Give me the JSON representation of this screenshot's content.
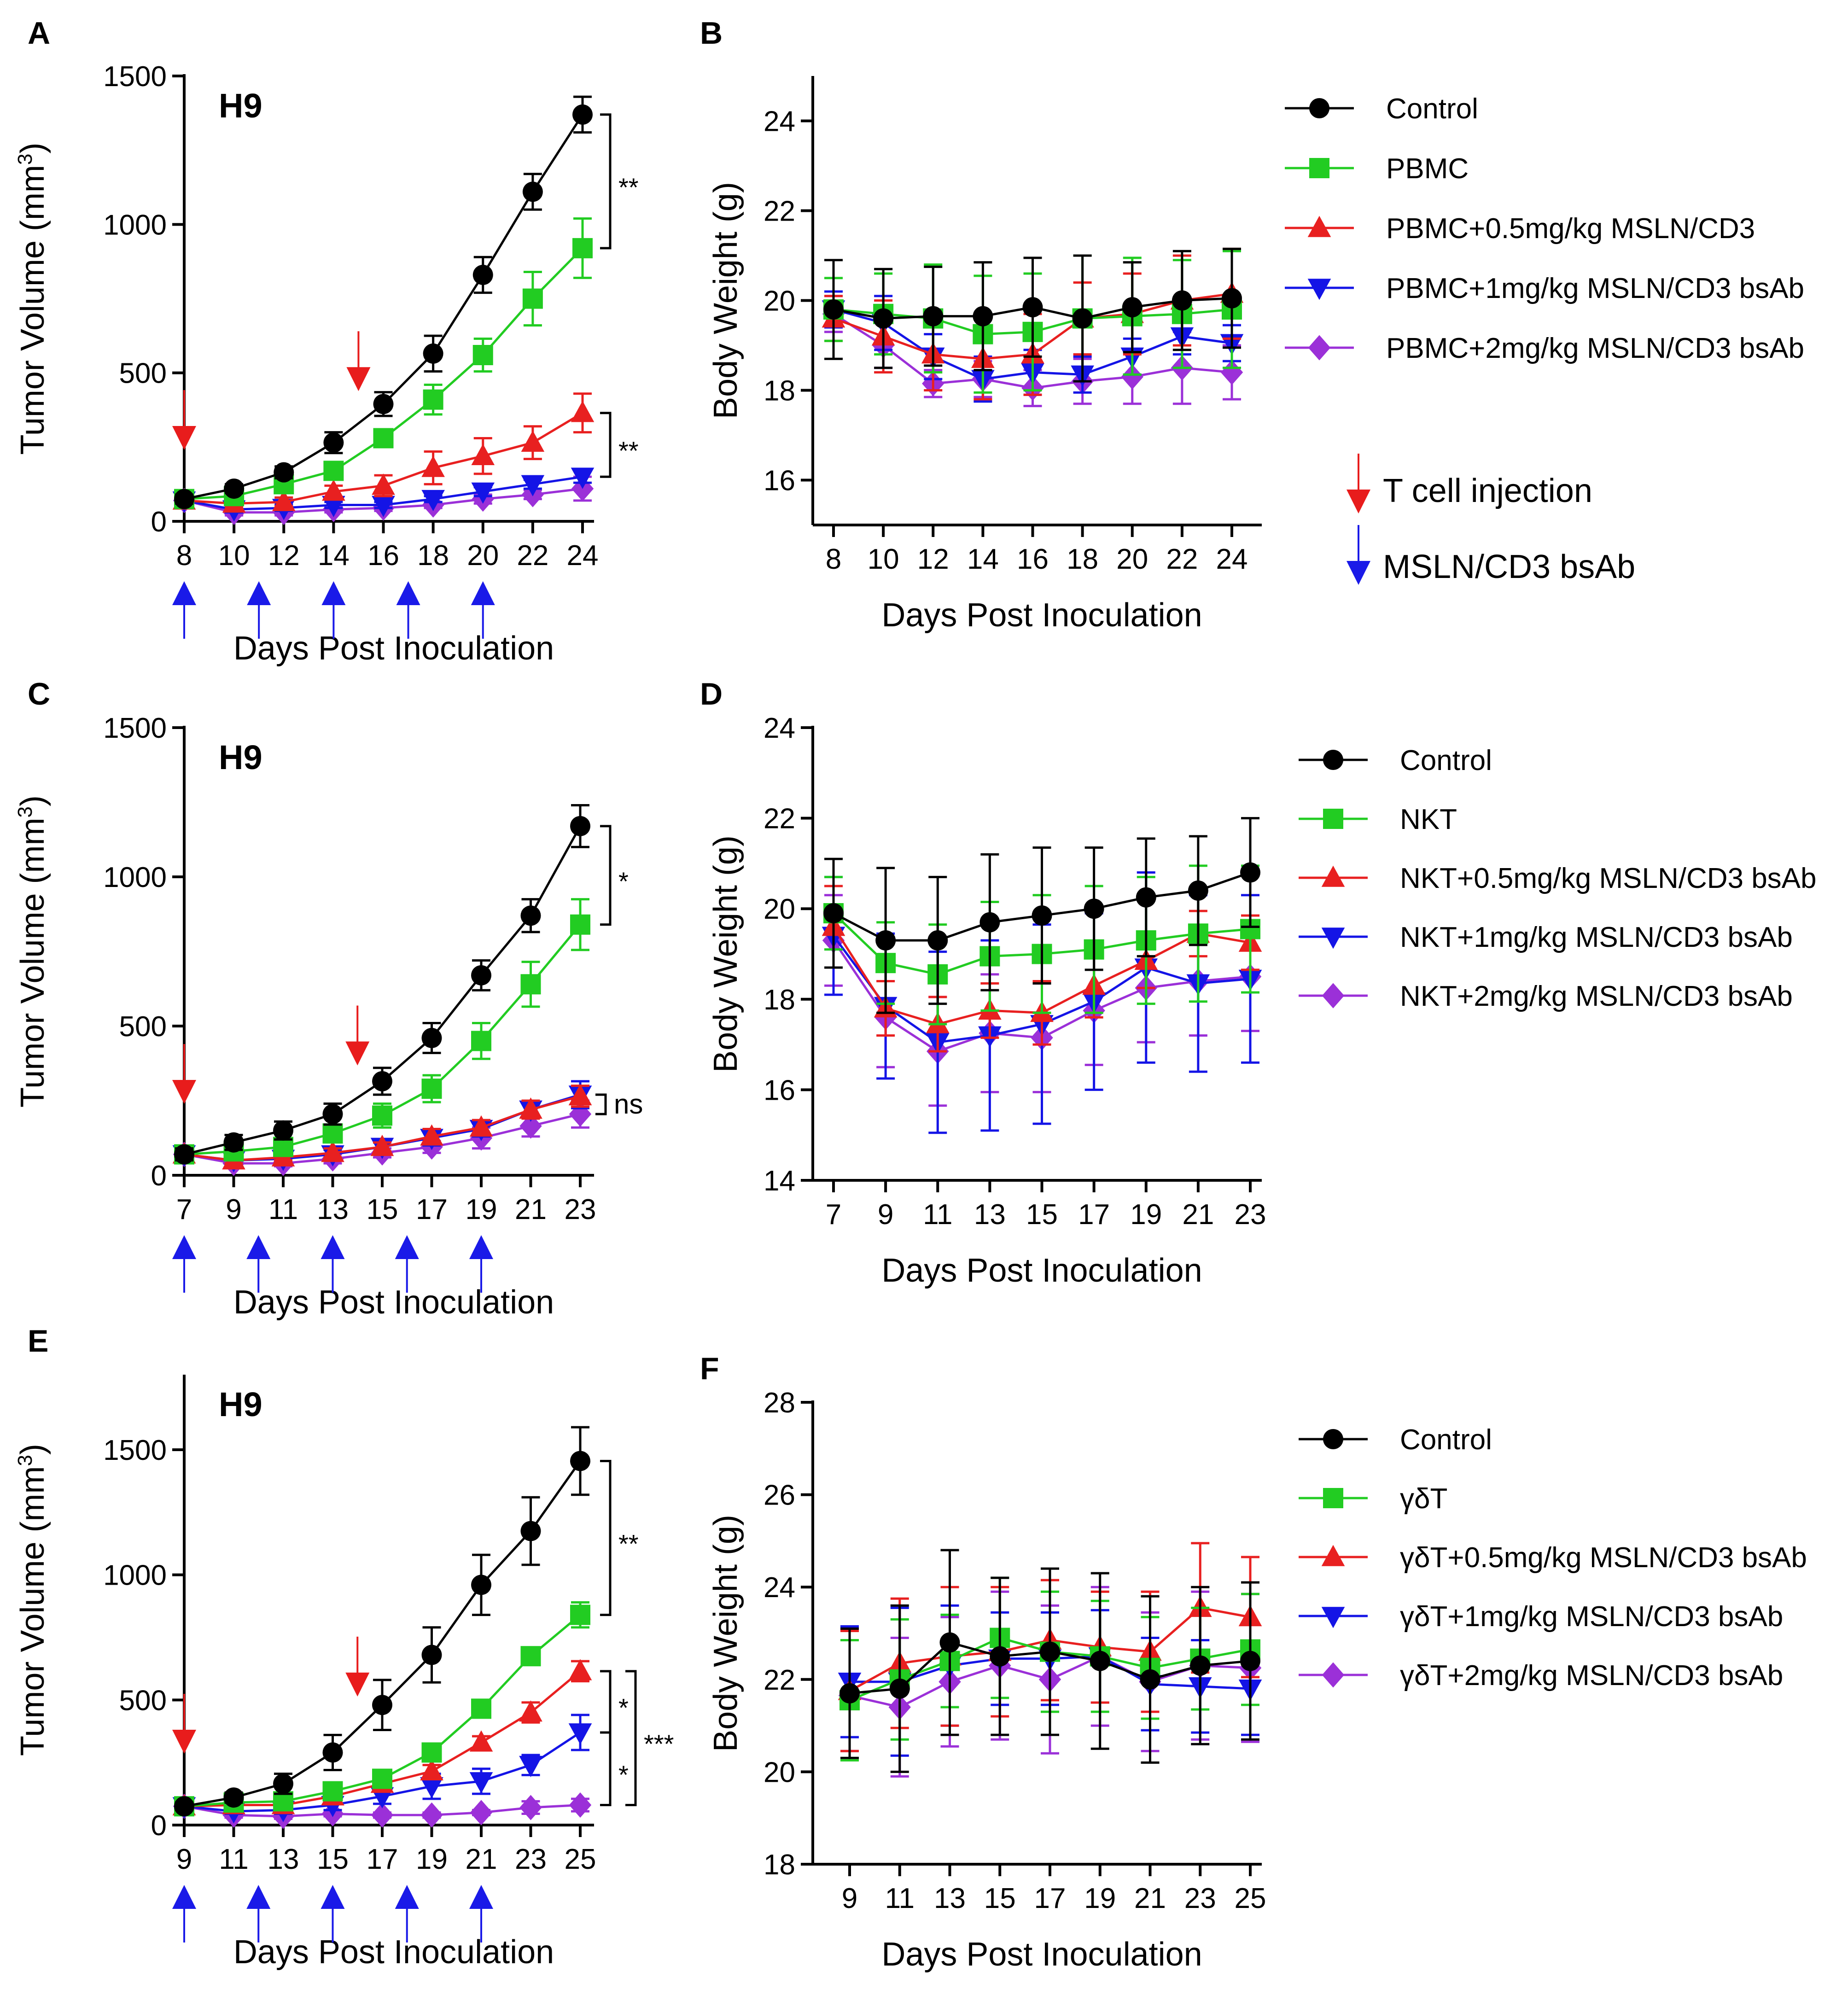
{
  "colors": {
    "Control": "#000000",
    "green": "#22cc22",
    "red": "#e82020",
    "blue": "#1414e6",
    "purple": "#9b30d8",
    "arrow_red": "#e81c1c",
    "arrow_blue": "#1a1ae8"
  },
  "legend_note": {
    "t_cell": "T cell injection",
    "bsab": "MSLN/CD3 bsAb"
  },
  "chart_data": [
    {
      "id": "A",
      "panel_label": "A",
      "type": "line",
      "title": "H9",
      "xlabel": "Days Post Inoculation",
      "ylabel": "Tumor Volume (mm3)",
      "x": [
        8,
        10,
        12,
        14,
        16,
        18,
        20,
        22,
        24
      ],
      "ylim": [
        0,
        1500
      ],
      "yticks": [
        0,
        500,
        1000,
        1500
      ],
      "xticks": [
        8,
        10,
        12,
        14,
        16,
        18,
        20,
        22,
        24
      ],
      "t_cell_days": [
        8,
        15
      ],
      "bsab_days": [
        8,
        11,
        14,
        17,
        20
      ],
      "series": [
        {
          "name": "Control",
          "color": "#000000",
          "marker": "circle",
          "values": [
            75,
            110,
            165,
            265,
            395,
            565,
            830,
            1110,
            1370
          ],
          "err": [
            15,
            15,
            20,
            35,
            40,
            60,
            60,
            60,
            60
          ]
        },
        {
          "name": "PBMC",
          "color": "#22cc22",
          "marker": "square",
          "values": [
            75,
            85,
            125,
            170,
            280,
            410,
            560,
            750,
            920
          ],
          "err": [
            15,
            15,
            20,
            25,
            25,
            50,
            55,
            90,
            100
          ]
        },
        {
          "name": "PBMC+0.5mg/kg MSLN/CD3",
          "color": "#e82020",
          "marker": "triangle-up",
          "values": [
            70,
            60,
            65,
            100,
            120,
            180,
            220,
            265,
            365
          ],
          "err": [
            10,
            10,
            15,
            20,
            35,
            55,
            60,
            55,
            65
          ]
        },
        {
          "name": "PBMC+1mg/kg MSLN/CD3 bsAb",
          "color": "#1414e6",
          "marker": "triangle-down",
          "values": [
            70,
            40,
            45,
            55,
            55,
            75,
            100,
            125,
            150
          ],
          "err": [
            10,
            10,
            10,
            10,
            10,
            10,
            15,
            15,
            20
          ]
        },
        {
          "name": "PBMC+2mg/kg MSLN/CD3 bsAb",
          "color": "#9b30d8",
          "marker": "diamond",
          "values": [
            70,
            30,
            30,
            40,
            45,
            55,
            75,
            90,
            110
          ],
          "err": [
            10,
            10,
            10,
            10,
            10,
            10,
            15,
            15,
            40
          ]
        }
      ],
      "annotations": [
        {
          "text": "**",
          "from": 1370,
          "to": 920
        },
        {
          "text": "**",
          "from": 365,
          "to": 150
        }
      ]
    },
    {
      "id": "B",
      "panel_label": "B",
      "type": "line",
      "xlabel": "Days Post Inoculation",
      "ylabel": "Body Weight (g)",
      "x": [
        8,
        10,
        12,
        14,
        16,
        18,
        20,
        22,
        24
      ],
      "ylim": [
        15,
        25
      ],
      "yticks": [
        16,
        18,
        20,
        22,
        24
      ],
      "xticks": [
        8,
        10,
        12,
        14,
        16,
        18,
        20,
        22,
        24
      ],
      "series": [
        {
          "name": "Control",
          "color": "#000000",
          "marker": "circle",
          "values": [
            19.8,
            19.6,
            19.65,
            19.65,
            19.85,
            19.6,
            19.85,
            20.0,
            20.05
          ],
          "err": [
            1.1,
            1.1,
            1.1,
            1.2,
            1.1,
            1.4,
            1.0,
            1.1,
            1.1
          ]
        },
        {
          "name": "PBMC",
          "color": "#22cc22",
          "marker": "square",
          "values": [
            19.8,
            19.7,
            19.6,
            19.25,
            19.3,
            19.6,
            19.65,
            19.7,
            19.8
          ],
          "err": [
            0.7,
            0.9,
            1.2,
            1.3,
            1.3,
            1.4,
            1.3,
            1.2,
            1.3
          ]
        },
        {
          "name": "PBMC+0.5mg/kg MSLN/CD3",
          "color": "#e82020",
          "marker": "triangle-up",
          "values": [
            19.6,
            19.2,
            18.8,
            18.7,
            18.8,
            19.6,
            19.7,
            20.0,
            20.15
          ],
          "err": [
            0.5,
            0.8,
            0.8,
            0.9,
            0.9,
            0.8,
            0.9,
            1.0,
            1.0
          ]
        },
        {
          "name": "PBMC+1mg/kg MSLN/CD3 bsAb",
          "color": "#1414e6",
          "marker": "triangle-down",
          "values": [
            19.8,
            19.5,
            18.75,
            18.25,
            18.4,
            18.35,
            18.75,
            19.2,
            19.05
          ],
          "err": [
            0.4,
            0.6,
            0.5,
            0.5,
            0.5,
            0.4,
            0.4,
            0.4,
            0.4
          ]
        },
        {
          "name": "PBMC+2mg/kg MSLN/CD3 bsAb",
          "color": "#9b30d8",
          "marker": "diamond",
          "values": [
            19.7,
            19.0,
            18.15,
            18.25,
            18.05,
            18.2,
            18.3,
            18.5,
            18.4
          ],
          "err": [
            0.4,
            0.5,
            0.3,
            0.4,
            0.4,
            0.5,
            0.6,
            0.8,
            0.6
          ]
        }
      ]
    },
    {
      "id": "C",
      "panel_label": "C",
      "type": "line",
      "title": "H9",
      "xlabel": "Days Post Inoculation",
      "ylabel": "Tumor Volume (mm3)",
      "x": [
        7,
        9,
        11,
        13,
        15,
        17,
        19,
        21,
        23
      ],
      "ylim": [
        0,
        1500
      ],
      "yticks": [
        0,
        500,
        1000,
        1500
      ],
      "xticks": [
        7,
        9,
        11,
        13,
        15,
        17,
        19,
        21,
        23
      ],
      "t_cell_days": [
        7,
        14
      ],
      "bsab_days": [
        7,
        10,
        13,
        16,
        19
      ],
      "series": [
        {
          "name": "Control",
          "color": "#000000",
          "marker": "circle",
          "values": [
            70,
            110,
            150,
            205,
            315,
            460,
            670,
            870,
            1170
          ],
          "err": [
            20,
            25,
            30,
            35,
            45,
            50,
            50,
            55,
            70
          ]
        },
        {
          "name": "NKT",
          "color": "#22cc22",
          "marker": "square",
          "values": [
            70,
            80,
            95,
            140,
            200,
            290,
            450,
            640,
            840
          ],
          "err": [
            15,
            15,
            20,
            25,
            40,
            45,
            60,
            75,
            85
          ]
        },
        {
          "name": "NKT+0.5mg/kg MSLN/CD3 bsAb",
          "color": "#e82020",
          "marker": "triangle-up",
          "values": [
            70,
            50,
            60,
            75,
            95,
            130,
            160,
            220,
            265
          ],
          "err": [
            10,
            10,
            10,
            15,
            15,
            25,
            25,
            30,
            35
          ]
        },
        {
          "name": "NKT+1mg/kg MSLN/CD3 bsAb",
          "color": "#1414e6",
          "marker": "triangle-down",
          "values": [
            70,
            50,
            55,
            70,
            95,
            125,
            155,
            220,
            270
          ],
          "err": [
            10,
            10,
            10,
            15,
            15,
            25,
            25,
            30,
            45
          ]
        },
        {
          "name": "NKT+2mg/kg MSLN/CD3 bsAb",
          "color": "#9b30d8",
          "marker": "diamond",
          "values": [
            70,
            40,
            40,
            55,
            75,
            95,
            125,
            165,
            205
          ],
          "err": [
            10,
            10,
            10,
            15,
            15,
            20,
            35,
            35,
            45
          ]
        }
      ],
      "annotations": [
        {
          "text": "*",
          "from": 1170,
          "to": 840
        },
        {
          "text": "ns",
          "from": 270,
          "to": 205
        }
      ]
    },
    {
      "id": "D",
      "panel_label": "D",
      "type": "line",
      "xlabel": "Days Post Inoculation",
      "ylabel": "Body Weight (g)",
      "x": [
        7,
        9,
        11,
        13,
        15,
        17,
        19,
        21,
        23
      ],
      "ylim": [
        14,
        24
      ],
      "yticks": [
        14,
        16,
        18,
        20,
        22,
        24
      ],
      "xticks": [
        7,
        9,
        11,
        13,
        15,
        17,
        19,
        21,
        23
      ],
      "series": [
        {
          "name": "Control",
          "color": "#000000",
          "marker": "circle",
          "values": [
            19.9,
            19.3,
            19.3,
            19.7,
            19.85,
            20.0,
            20.25,
            20.4,
            20.8
          ],
          "err": [
            1.2,
            1.6,
            1.4,
            1.5,
            1.5,
            1.35,
            1.3,
            1.2,
            1.2
          ]
        },
        {
          "name": "NKT",
          "color": "#22cc22",
          "marker": "square",
          "values": [
            19.9,
            18.8,
            18.55,
            18.95,
            19.0,
            19.1,
            19.3,
            19.45,
            19.55
          ],
          "err": [
            0.8,
            0.9,
            1.1,
            1.2,
            1.3,
            1.4,
            1.4,
            1.5,
            1.4
          ]
        },
        {
          "name": "NKT+0.5mg/kg MSLN/CD3 bsAb",
          "color": "#e82020",
          "marker": "triangle-up",
          "values": [
            19.6,
            17.8,
            17.45,
            17.75,
            17.7,
            18.3,
            18.85,
            19.45,
            19.25
          ],
          "err": [
            0.9,
            0.6,
            0.6,
            0.6,
            0.7,
            0.7,
            0.6,
            0.5,
            0.6
          ]
        },
        {
          "name": "NKT+1mg/kg MSLN/CD3 bsAb",
          "color": "#1414e6",
          "marker": "triangle-down",
          "values": [
            19.4,
            17.85,
            17.05,
            17.2,
            17.45,
            17.95,
            18.7,
            18.35,
            18.45
          ],
          "err": [
            1.3,
            1.6,
            2.0,
            2.1,
            2.2,
            1.95,
            2.1,
            1.95,
            1.85
          ]
        },
        {
          "name": "NKT+2mg/kg MSLN/CD3 bsAb",
          "color": "#9b30d8",
          "marker": "diamond",
          "values": [
            19.3,
            17.6,
            16.85,
            17.25,
            17.15,
            17.75,
            18.25,
            18.4,
            18.5
          ],
          "err": [
            1.0,
            1.1,
            1.2,
            1.3,
            1.2,
            1.2,
            1.2,
            1.2,
            1.2
          ]
        }
      ]
    },
    {
      "id": "E",
      "panel_label": "E",
      "type": "line",
      "title": "H9",
      "xlabel": "Days Post Inoculation",
      "ylabel": "Tumor Volume (mm3)",
      "x": [
        9,
        11,
        13,
        15,
        17,
        19,
        21,
        23,
        25
      ],
      "ylim": [
        0,
        1800
      ],
      "yticks": [
        0,
        500,
        1000,
        1500
      ],
      "xticks": [
        9,
        11,
        13,
        15,
        17,
        19,
        21,
        23,
        25
      ],
      "t_cell_days": [
        9,
        16
      ],
      "bsab_days": [
        9,
        12,
        15,
        18,
        21
      ],
      "series": [
        {
          "name": "Control",
          "color": "#000000",
          "marker": "circle",
          "values": [
            75,
            110,
            165,
            290,
            480,
            680,
            960,
            1175,
            1455
          ],
          "err": [
            15,
            20,
            40,
            70,
            100,
            110,
            120,
            135,
            135
          ]
        },
        {
          "name": "γδT",
          "color": "#22cc22",
          "marker": "square",
          "values": [
            75,
            90,
            95,
            135,
            185,
            290,
            465,
            675,
            840
          ],
          "err": [
            15,
            15,
            15,
            20,
            20,
            25,
            25,
            30,
            50
          ]
        },
        {
          "name": "γδT+0.5mg/kg MSLN/CD3 bsAb",
          "color": "#e82020",
          "marker": "triangle-up",
          "values": [
            75,
            80,
            80,
            115,
            165,
            215,
            330,
            450,
            615
          ],
          "err": [
            15,
            15,
            15,
            20,
            20,
            25,
            25,
            40,
            40
          ]
        },
        {
          "name": "γδT+1mg/kg MSLN/CD3 bsAb",
          "color": "#1414e6",
          "marker": "triangle-down",
          "values": [
            75,
            55,
            60,
            80,
            115,
            155,
            175,
            240,
            370
          ],
          "err": [
            15,
            10,
            15,
            20,
            30,
            50,
            50,
            40,
            70
          ]
        },
        {
          "name": "γδT+2mg/kg MSLN/CD3 bsAb",
          "color": "#9b30d8",
          "marker": "diamond",
          "values": [
            75,
            40,
            35,
            45,
            40,
            40,
            50,
            70,
            80
          ],
          "err": [
            10,
            10,
            10,
            10,
            10,
            10,
            10,
            25,
            25
          ]
        }
      ],
      "annotations": [
        {
          "text": "**",
          "from": 1455,
          "to": 840
        },
        {
          "text": "*",
          "from": 615,
          "to": 370
        },
        {
          "text": "*",
          "from": 370,
          "to": 80
        },
        {
          "text": "***",
          "from": 615,
          "to": 80
        }
      ]
    },
    {
      "id": "F",
      "panel_label": "F",
      "type": "line",
      "xlabel": "Days Post Inoculation",
      "ylabel": "Body Weight (g)",
      "x": [
        9,
        11,
        13,
        15,
        17,
        19,
        21,
        23,
        25
      ],
      "ylim": [
        18,
        28
      ],
      "yticks": [
        18,
        20,
        22,
        24,
        26,
        28
      ],
      "xticks": [
        9,
        11,
        13,
        15,
        17,
        19,
        21,
        23,
        25
      ],
      "series": [
        {
          "name": "Control",
          "color": "#000000",
          "marker": "circle",
          "values": [
            21.7,
            21.8,
            22.8,
            22.5,
            22.6,
            22.4,
            22.0,
            22.3,
            22.4
          ],
          "err": [
            1.4,
            1.8,
            2.0,
            1.7,
            1.8,
            1.9,
            1.8,
            1.7,
            1.7
          ]
        },
        {
          "name": "γδT",
          "color": "#22cc22",
          "marker": "square",
          "values": [
            21.55,
            22.0,
            22.4,
            22.9,
            22.6,
            22.5,
            22.25,
            22.45,
            22.65
          ],
          "err": [
            1.3,
            1.3,
            1.0,
            1.3,
            1.3,
            1.2,
            1.1,
            1.1,
            1.2
          ]
        },
        {
          "name": "γδT+0.5mg/kg MSLN/CD3 bsAb",
          "color": "#e82020",
          "marker": "triangle-up",
          "values": [
            21.75,
            22.35,
            22.5,
            22.6,
            22.85,
            22.7,
            22.6,
            23.55,
            23.35
          ],
          "err": [
            1.3,
            1.4,
            1.5,
            1.4,
            1.3,
            1.2,
            1.3,
            1.4,
            1.3
          ]
        },
        {
          "name": "γδT+1mg/kg MSLN/CD3 bsAb",
          "color": "#1414e6",
          "marker": "triangle-down",
          "values": [
            21.95,
            21.95,
            22.3,
            22.45,
            22.45,
            22.5,
            21.9,
            21.85,
            21.8
          ],
          "err": [
            1.2,
            1.6,
            1.3,
            1.0,
            1.0,
            1.0,
            1.0,
            1.0,
            1.0
          ]
        },
        {
          "name": "γδT+2mg/kg MSLN/CD3 bsAb",
          "color": "#9b30d8",
          "marker": "diamond",
          "values": [
            21.65,
            21.4,
            21.95,
            22.3,
            22.0,
            22.5,
            21.95,
            22.3,
            22.25
          ],
          "err": [
            1.2,
            1.5,
            1.4,
            1.6,
            1.6,
            1.5,
            1.5,
            1.6,
            1.6
          ]
        }
      ]
    }
  ]
}
